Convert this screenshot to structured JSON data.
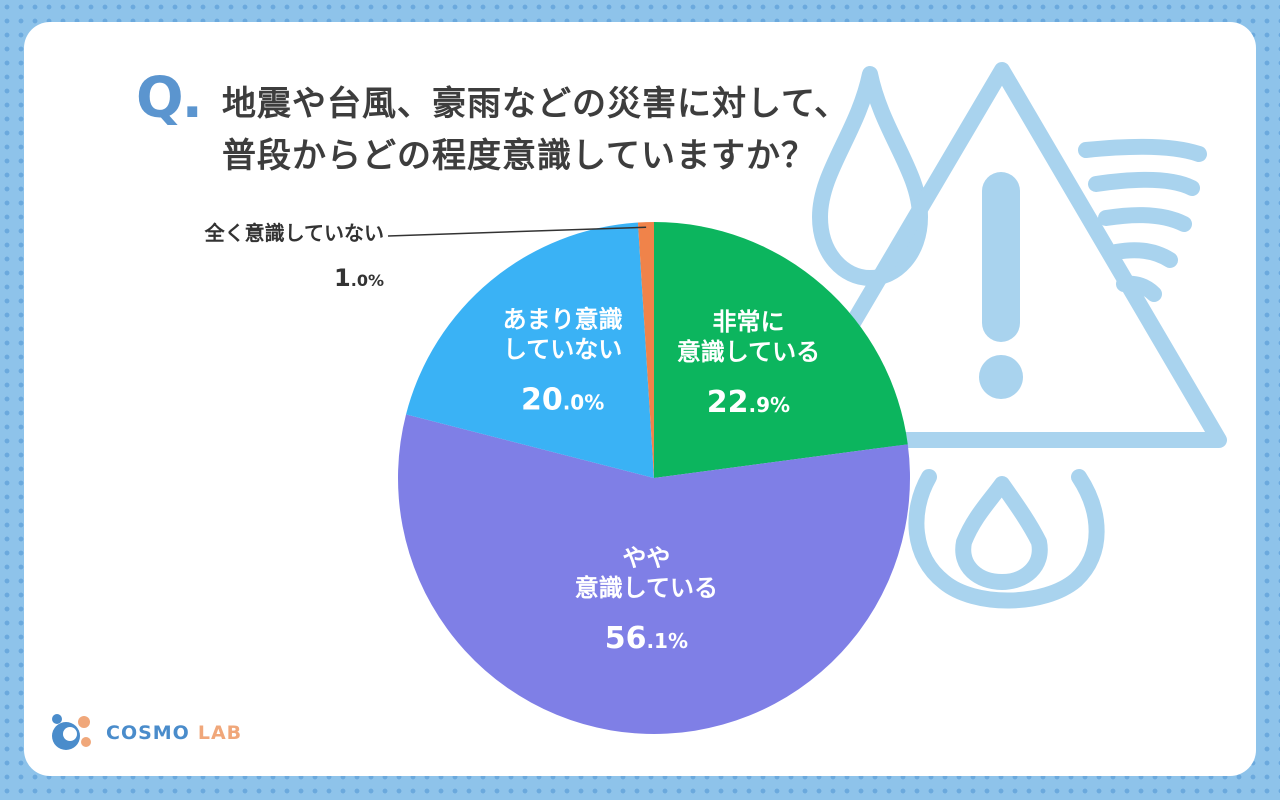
{
  "question": {
    "mark": "Q.",
    "line1": "地震や台風、豪雨などの災害に対して、",
    "line2": "普段からどの程度意識していますか？"
  },
  "chart_data": {
    "type": "pie",
    "start_angle_deg": 0,
    "direction": "clockwise",
    "slices": [
      {
        "label_lines": [
          "非常に",
          "意識している"
        ],
        "value": 22.9,
        "int_part": "22",
        "dec_part": ".9%",
        "color": "#0cb55e",
        "label_placement": "inside"
      },
      {
        "label_lines": [
          "やや",
          "意識している"
        ],
        "value": 56.1,
        "int_part": "56",
        "dec_part": ".1%",
        "color": "#7f7fe6",
        "label_placement": "inside"
      },
      {
        "label_lines": [
          "あまり意識",
          "していない"
        ],
        "value": 20.0,
        "int_part": "20",
        "dec_part": ".0%",
        "color": "#3ab2f5",
        "label_placement": "inside"
      },
      {
        "label_lines": [
          "全く意識していない"
        ],
        "value": 1.0,
        "int_part": "1",
        "dec_part": ".0%",
        "color": "#f0834a",
        "label_placement": "outside-callout"
      }
    ]
  },
  "logo": {
    "cosmo": "COSMO",
    "lab": "LAB"
  },
  "colors": {
    "background": "#8ec3ea",
    "card": "#ffffff",
    "accent": "#5b95cf",
    "title_text": "#3d3d3d",
    "decoration": "#a9d3ee"
  }
}
